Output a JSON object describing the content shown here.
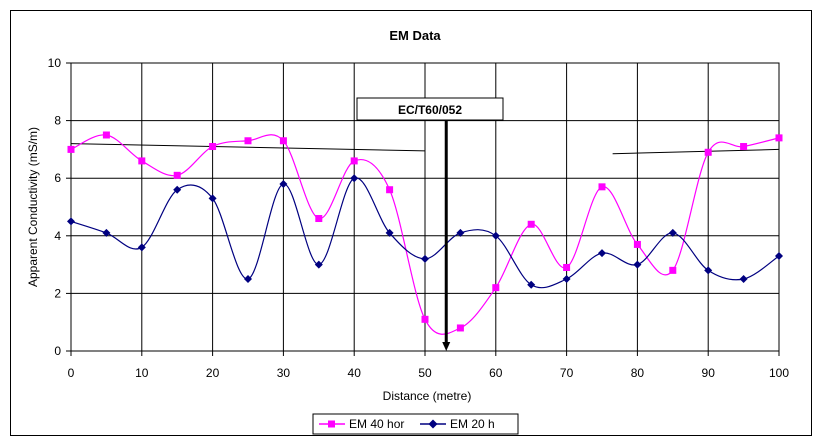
{
  "chart_data": {
    "type": "line",
    "title": "EM Data",
    "xlabel": "Distance (metre)",
    "ylabel": "Apparent Conductivity (mS/m)",
    "xlim": [
      0,
      100
    ],
    "ylim": [
      0,
      10
    ],
    "xticks": [
      0,
      10,
      20,
      30,
      40,
      50,
      60,
      70,
      80,
      90,
      100
    ],
    "yticks": [
      0,
      2,
      4,
      6,
      8,
      10
    ],
    "grid": true,
    "legend_position": "bottom",
    "smooth": true,
    "x": [
      0,
      5,
      10,
      15,
      20,
      25,
      30,
      35,
      40,
      45,
      50,
      55,
      60,
      65,
      70,
      75,
      80,
      85,
      90,
      95,
      100
    ],
    "series": [
      {
        "name": "EM 40 hor",
        "color": "#FF00FF",
        "marker": "square",
        "values": [
          7.0,
          7.5,
          6.6,
          6.1,
          7.1,
          7.3,
          7.3,
          4.6,
          6.6,
          5.6,
          1.1,
          0.8,
          2.2,
          4.4,
          2.9,
          5.7,
          3.7,
          2.8,
          6.9,
          7.1,
          7.4
        ]
      },
      {
        "name": "EM 20 h",
        "color": "#000080",
        "marker": "diamond",
        "values": [
          4.5,
          4.1,
          3.6,
          5.6,
          5.3,
          2.5,
          5.8,
          3.0,
          6.0,
          4.1,
          3.2,
          4.1,
          4.0,
          2.3,
          2.5,
          3.4,
          3.0,
          4.1,
          2.8,
          2.5,
          3.3
        ]
      }
    ],
    "trend_lines": [
      {
        "x": [
          0,
          50
        ],
        "y": [
          7.2,
          6.95
        ],
        "color": "#000000"
      },
      {
        "x": [
          76.5,
          100
        ],
        "y": [
          6.85,
          7.0
        ],
        "color": "#000000"
      }
    ],
    "annotation": {
      "text": "EC/T60/052",
      "arrow_x": 53,
      "arrow_from_y": 8.8,
      "arrow_to_y": 0
    }
  }
}
